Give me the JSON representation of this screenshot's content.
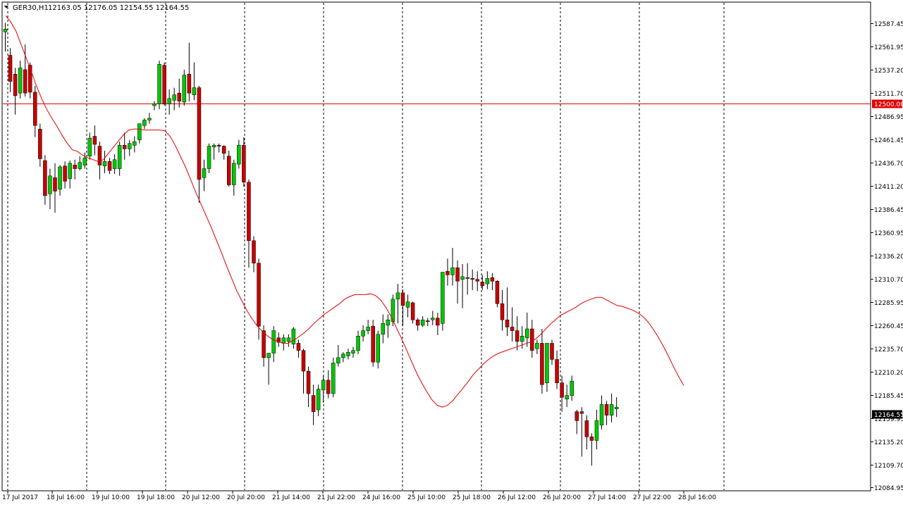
{
  "header": {
    "symbol_label": "GER30,H1",
    "ohlc_label": "12163.05 12176.05 12154.55 12164.55"
  },
  "colors": {
    "bull": "#00c800",
    "bear": "#c80000",
    "wick": "#000000",
    "ma_line": "#e00000",
    "level_line": "#e00000",
    "level_tag_bg": "#e00000",
    "level_tag_text": "#ffffff",
    "price_tag_bg": "#000000",
    "price_tag_text": "#ffffff",
    "grid_line": "#000000",
    "axis_text": "#000000"
  },
  "chart_data": {
    "type": "candlestick",
    "title": "GER30,H1",
    "ylim": [
      12084.95,
      12600.6
    ],
    "y_ticks": [
      "12587.45",
      "12561.95",
      "12537.20",
      "12511.70",
      "12486.95",
      "12461.45",
      "12436.70",
      "12411.20",
      "12386.45",
      "12360.95",
      "12336.20",
      "12310.70",
      "12285.95",
      "12260.45",
      "12235.70",
      "12210.20",
      "12185.45",
      "12159.95",
      "12135.20",
      "12109.70",
      "12084.95"
    ],
    "x_tick_labels": [
      "17 Jul 2017",
      "18 Jul 16:00",
      "19 Jul 10:00",
      "19 Jul 18:00",
      "20 Jul 12:00",
      "20 Jul 20:00",
      "21 Jul 14:00",
      "21 Jul 22:00",
      "24 Jul 16:00",
      "25 Jul 10:00",
      "25 Jul 18:00",
      "26 Jul 12:00",
      "26 Jul 20:00",
      "27 Jul 14:00",
      "27 Jul 22:00",
      "28 Jul 16:00"
    ],
    "horizontal_level": {
      "value": 12500.0,
      "label": "12500.00"
    },
    "last_price": {
      "value": 12164.55,
      "label": "12164.55"
    },
    "candles": [
      [
        12582,
        12592,
        12560,
        12585
      ],
      [
        12556,
        12564,
        12515,
        12527
      ],
      [
        12535,
        12542,
        12490,
        12511
      ],
      [
        12514,
        12550,
        12508,
        12542
      ],
      [
        12540,
        12568,
        12510,
        12514
      ],
      [
        12545,
        12548,
        12508,
        12515
      ],
      [
        12515,
        12522,
        12465,
        12478
      ],
      [
        12474,
        12480,
        12432,
        12441
      ],
      [
        12439,
        12445,
        12390,
        12400
      ],
      [
        12402,
        12430,
        12385,
        12422
      ],
      [
        12420,
        12436,
        12381,
        12405
      ],
      [
        12407,
        12434,
        12400,
        12432
      ],
      [
        12433,
        12438,
        12408,
        12416
      ],
      [
        12419,
        12439,
        12408,
        12436
      ],
      [
        12434,
        12440,
        12418,
        12430
      ],
      [
        12430,
        12444,
        12428,
        12437
      ],
      [
        12434,
        12448,
        12430,
        12442
      ],
      [
        12444,
        12470,
        12440,
        12464
      ],
      [
        12466,
        12478,
        12445,
        12457
      ],
      [
        12455,
        12460,
        12418,
        12434
      ],
      [
        12433,
        12450,
        12425,
        12438
      ],
      [
        12438,
        12442,
        12424,
        12428
      ],
      [
        12430,
        12446,
        12424,
        12440
      ],
      [
        12430,
        12460,
        12422,
        12456
      ],
      [
        12456,
        12470,
        12440,
        12452
      ],
      [
        12452,
        12462,
        12444,
        12458
      ],
      [
        12456,
        12466,
        12448,
        12460
      ],
      [
        12462,
        12480,
        12458,
        12480
      ],
      [
        12478,
        12486,
        12474,
        12484
      ],
      [
        12484,
        12492,
        12480,
        12486
      ],
      [
        12500,
        12505,
        12495,
        12502
      ],
      [
        12502,
        12550,
        12496,
        12546
      ],
      [
        12545,
        12548,
        12500,
        12502
      ],
      [
        12502,
        12518,
        12490,
        12508
      ],
      [
        12506,
        12520,
        12495,
        12512
      ],
      [
        12514,
        12530,
        12498,
        12505
      ],
      [
        12504,
        12540,
        12500,
        12534
      ],
      [
        12535,
        12570,
        12505,
        12514
      ],
      [
        12512,
        12548,
        12506,
        12520
      ],
      [
        12520,
        12522,
        12392,
        12418
      ],
      [
        12420,
        12440,
        12405,
        12430
      ],
      [
        12430,
        12458,
        12425,
        12455
      ],
      [
        12454,
        12458,
        12440,
        12456
      ],
      [
        12456,
        12458,
        12448,
        12455
      ],
      [
        12455,
        12456,
        12440,
        12447
      ],
      [
        12444,
        12450,
        12410,
        12412
      ],
      [
        12412,
        12440,
        12400,
        12436
      ],
      [
        12435,
        12462,
        12430,
        12456
      ],
      [
        12456,
        12465,
        12410,
        12415
      ],
      [
        12415,
        12418,
        12320,
        12350
      ],
      [
        12350,
        12355,
        12315,
        12325
      ],
      [
        12325,
        12330,
        12240,
        12255
      ],
      [
        12250,
        12256,
        12210,
        12220
      ],
      [
        12220,
        12225,
        12190,
        12225
      ],
      [
        12225,
        12255,
        12215,
        12250
      ],
      [
        12242,
        12248,
        12232,
        12237
      ],
      [
        12236,
        12246,
        12228,
        12242
      ],
      [
        12238,
        12246,
        12232,
        12242
      ],
      [
        12235,
        12254,
        12230,
        12252
      ],
      [
        12236,
        12240,
        12220,
        12228
      ],
      [
        12228,
        12230,
        12180,
        12205
      ],
      [
        12205,
        12210,
        12165,
        12180
      ],
      [
        12178,
        12190,
        12145,
        12160
      ],
      [
        12162,
        12190,
        12155,
        12185
      ],
      [
        12184,
        12200,
        12170,
        12195
      ],
      [
        12195,
        12206,
        12175,
        12180
      ],
      [
        12180,
        12220,
        12176,
        12214
      ],
      [
        12214,
        12234,
        12210,
        12220
      ],
      [
        12220,
        12226,
        12215,
        12224
      ],
      [
        12222,
        12230,
        12218,
        12226
      ],
      [
        12225,
        12232,
        12220,
        12228
      ],
      [
        12228,
        12250,
        12224,
        12244
      ],
      [
        12244,
        12256,
        12238,
        12250
      ],
      [
        12250,
        12262,
        12246,
        12254
      ],
      [
        12255,
        12262,
        12210,
        12215
      ],
      [
        12215,
        12250,
        12208,
        12246
      ],
      [
        12246,
        12268,
        12236,
        12258
      ],
      [
        12256,
        12268,
        12242,
        12262
      ],
      [
        12260,
        12290,
        12255,
        12285
      ],
      [
        12285,
        12302,
        12258,
        12292
      ],
      [
        12292,
        12296,
        12255,
        12278
      ],
      [
        12276,
        12290,
        12265,
        12282
      ],
      [
        12281,
        12282,
        12258,
        12262
      ],
      [
        12262,
        12264,
        12250,
        12256
      ],
      [
        12256,
        12266,
        12254,
        12262
      ],
      [
        12261,
        12264,
        12255,
        12260
      ],
      [
        12262,
        12272,
        12256,
        12264
      ],
      [
        12264,
        12270,
        12245,
        12256
      ],
      [
        12258,
        12310,
        12250,
        12315
      ],
      [
        12316,
        12330,
        12300,
        12312
      ],
      [
        12312,
        12342,
        12300,
        12320
      ],
      [
        12320,
        12328,
        12280,
        12305
      ],
      [
        12307,
        12324,
        12275,
        12310
      ],
      [
        12309,
        12325,
        12290,
        12308
      ],
      [
        12308,
        12318,
        12295,
        12307
      ],
      [
        12307,
        12316,
        12294,
        12305
      ],
      [
        12304,
        12312,
        12295,
        12300
      ],
      [
        12302,
        12316,
        12296,
        12308
      ],
      [
        12309,
        12314,
        12295,
        12305
      ],
      [
        12305,
        12306,
        12276,
        12280
      ],
      [
        12280,
        12295,
        12250,
        12262
      ],
      [
        12262,
        12298,
        12244,
        12254
      ],
      [
        12254,
        12276,
        12238,
        12250
      ],
      [
        12250,
        12266,
        12228,
        12238
      ],
      [
        12238,
        12255,
        12230,
        12244
      ],
      [
        12242,
        12270,
        12232,
        12252
      ],
      [
        12252,
        12262,
        12220,
        12228
      ],
      [
        12230,
        12240,
        12224,
        12236
      ],
      [
        12236,
        12252,
        12180,
        12190
      ],
      [
        12192,
        12236,
        12182,
        12236
      ],
      [
        12236,
        12240,
        12212,
        12218
      ],
      [
        12218,
        12228,
        12185,
        12192
      ],
      [
        12192,
        12200,
        12160,
        12176
      ],
      [
        12174,
        12190,
        12165,
        12178
      ],
      [
        12178,
        12200,
        12172,
        12194
      ],
      [
        12160,
        12162,
        12135,
        12150
      ],
      [
        12160,
        12165,
        12110,
        12158
      ],
      [
        12150,
        12156,
        12118,
        12132
      ],
      [
        12132,
        12136,
        12100,
        12128
      ],
      [
        12128,
        12162,
        12118,
        12150
      ],
      [
        12145,
        12178,
        12140,
        12168
      ],
      [
        12168,
        12172,
        12145,
        12156
      ],
      [
        12156,
        12180,
        12148,
        12168
      ],
      [
        12163,
        12176,
        12154,
        12165
      ]
    ],
    "ma": [
      12600,
      12593,
      12583,
      12568,
      12553,
      12538,
      12522,
      12508,
      12496,
      12486,
      12477,
      12467,
      12458,
      12451,
      12449,
      12445,
      12442,
      12440,
      12438,
      12440,
      12447,
      12454,
      12461,
      12468,
      12473,
      12474,
      12474,
      12473,
      12473,
      12473,
      12473,
      12472,
      12466,
      12456,
      12444,
      12432,
      12418,
      12404,
      12391,
      12378,
      12365,
      12351,
      12337,
      12322,
      12308,
      12294,
      12283,
      12272,
      12263,
      12255,
      12249,
      12244,
      12240,
      12238,
      12236,
      12236,
      12239,
      12243,
      12247,
      12252,
      12258,
      12263,
      12268,
      12272,
      12276,
      12280,
      12285,
      12288,
      12290,
      12290,
      12290,
      12291,
      12289,
      12284,
      12276,
      12266,
      12254,
      12242,
      12229,
      12216,
      12203,
      12192,
      12182,
      12173,
      12167,
      12165,
      12167,
      12172,
      12179,
      12186,
      12193,
      12201,
      12207,
      12213,
      12218,
      12222,
      12225,
      12227,
      12229,
      12231,
      12233,
      12235,
      12237,
      12240,
      12245,
      12251,
      12257,
      12262,
      12267,
      12270,
      12273,
      12276,
      12280,
      12283,
      12285,
      12287,
      12287,
      12284,
      12281,
      12278,
      12277,
      12275,
      12273,
      12270,
      12266,
      12260,
      12252,
      12243,
      12233,
      12222,
      12210,
      12199,
      12189
    ],
    "ma_name": ""
  }
}
